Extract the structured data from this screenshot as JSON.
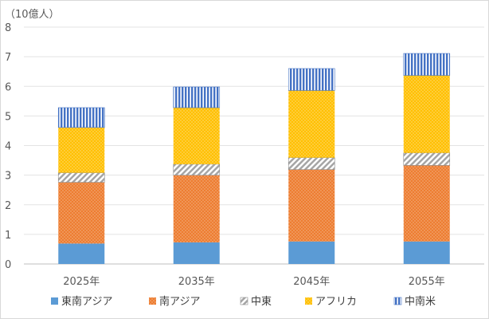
{
  "chart_data": {
    "type": "bar",
    "stacked": true,
    "unit_label": "（10億人）",
    "categories": [
      "2025年",
      "2035年",
      "2045年",
      "2055年"
    ],
    "ylim": [
      0,
      8
    ],
    "yticks": [
      "0",
      "1",
      "2",
      "3",
      "4",
      "5",
      "6",
      "7",
      "8"
    ],
    "grid": true,
    "legend_position": "bottom",
    "series": [
      {
        "name": "東南アジア",
        "values": [
          0.69,
          0.73,
          0.76,
          0.76
        ],
        "color": "#5b9bd5",
        "pattern": "solid"
      },
      {
        "name": "南アジア",
        "values": [
          2.07,
          2.27,
          2.43,
          2.57
        ],
        "color": "#ed7d31",
        "pattern": "dots"
      },
      {
        "name": "中東",
        "values": [
          0.32,
          0.37,
          0.4,
          0.42
        ],
        "color": "#a5a5a5",
        "pattern": "diagonal"
      },
      {
        "name": "アフリカ",
        "values": [
          1.53,
          1.91,
          2.27,
          2.62
        ],
        "color": "#ffc000",
        "pattern": "dots"
      },
      {
        "name": "中南米",
        "values": [
          0.67,
          0.7,
          0.74,
          0.74
        ],
        "color": "#4472c4",
        "pattern": "vertical"
      }
    ]
  }
}
